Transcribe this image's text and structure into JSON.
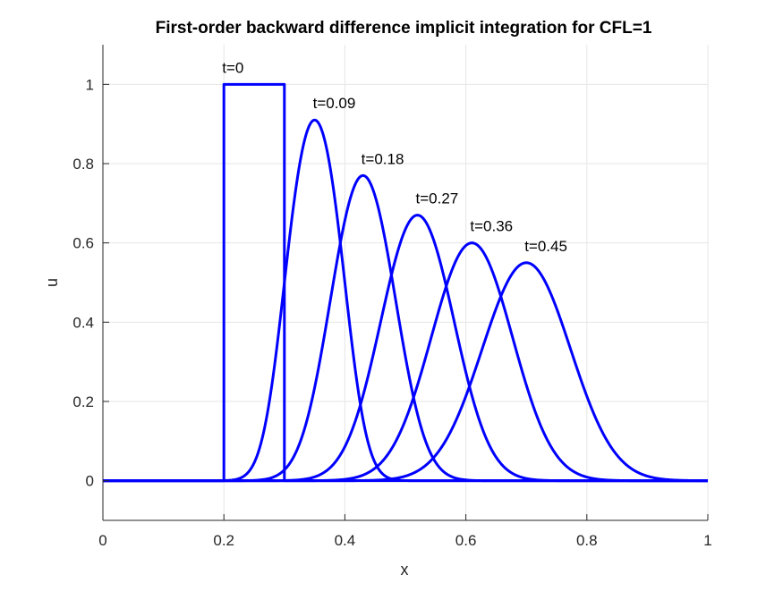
{
  "chart_data": {
    "type": "line",
    "title": "First-order backward difference implicit integration for CFL=1",
    "xlabel": "x",
    "ylabel": "u",
    "xlim": [
      0,
      1
    ],
    "ylim": [
      -0.1,
      1.1
    ],
    "xticks": [
      0,
      0.2,
      0.4,
      0.6,
      0.8,
      1
    ],
    "xtick_labels": [
      "0",
      "0.2",
      "0.4",
      "0.6",
      "0.8",
      "1"
    ],
    "yticks": [
      0,
      0.2,
      0.4,
      0.6,
      0.8,
      1
    ],
    "ytick_labels": [
      "0",
      "0.2",
      "0.4",
      "0.6",
      "0.8",
      "1"
    ],
    "grid": true,
    "line_color": "#0000ff",
    "initial_pulse": {
      "x_start": 0.2,
      "x_end": 0.3,
      "height": 1
    },
    "series": [
      {
        "label": "t=0",
        "t": 0,
        "peak_x": 0.25,
        "peak_u": 1.0
      },
      {
        "label": "t=0.09",
        "t": 0.09,
        "peak_x": 0.35,
        "peak_u": 0.91
      },
      {
        "label": "t=0.18",
        "t": 0.18,
        "peak_x": 0.43,
        "peak_u": 0.77
      },
      {
        "label": "t=0.27",
        "t": 0.27,
        "peak_x": 0.52,
        "peak_u": 0.67
      },
      {
        "label": "t=0.36",
        "t": 0.36,
        "peak_x": 0.61,
        "peak_u": 0.6
      },
      {
        "label": "t=0.45",
        "t": 0.45,
        "peak_x": 0.7,
        "peak_u": 0.55
      }
    ]
  }
}
